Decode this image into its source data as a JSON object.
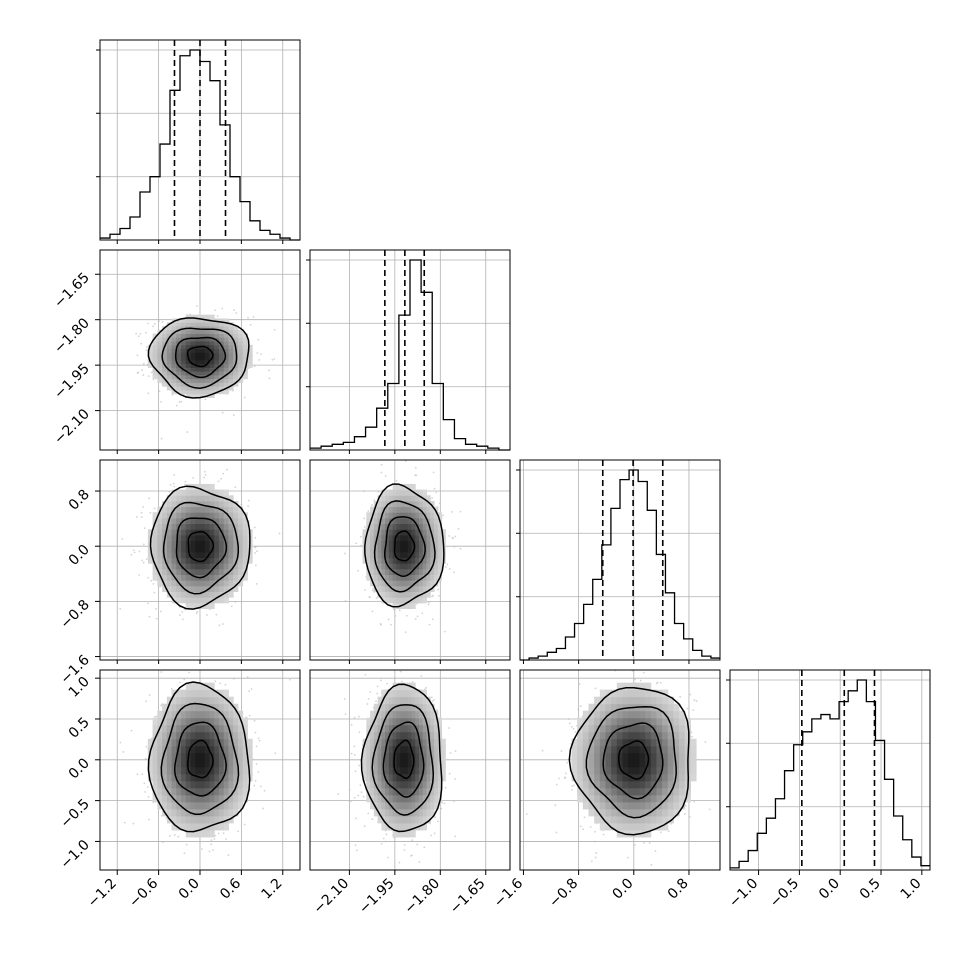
{
  "chart_data": {
    "type": "corner",
    "grid": true,
    "colors": {
      "ink": "#000000",
      "grid": "#b0b0b0",
      "scatter": "#b8b8b8"
    },
    "variables": [
      {
        "range": [
          -1.45,
          1.45
        ],
        "ticks": [
          -1.2,
          -0.6,
          0.0,
          0.6,
          1.2
        ],
        "tick_labels": [
          "−1.2",
          "−0.6",
          "0.0",
          "0.6",
          "1.2"
        ],
        "quantiles": [
          -0.37,
          0.0,
          0.37
        ],
        "hist": [
          1,
          3,
          6,
          12,
          25,
          33,
          50,
          78,
          96,
          99,
          93,
          83,
          60,
          33,
          20,
          10,
          5,
          3,
          1,
          0
        ]
      },
      {
        "range": [
          -2.23,
          -1.57
        ],
        "ticks": [
          -2.1,
          -1.95,
          -1.8,
          -1.65
        ],
        "tick_labels": [
          "−2.10",
          "−1.95",
          "−1.80",
          "−1.65"
        ],
        "quantiles": [
          -1.983,
          -1.917,
          -1.853
        ],
        "hist": [
          1,
          2,
          3,
          4,
          7,
          12,
          22,
          35,
          71,
          100,
          83,
          35,
          16,
          6,
          3,
          2,
          1,
          0
        ]
      },
      {
        "range": [
          -1.65,
          1.25
        ],
        "ticks": [
          -1.6,
          -0.8,
          0.0,
          0.8
        ],
        "tick_labels": [
          "−1.6",
          "−0.8",
          "0.0",
          "0.8"
        ],
        "quantiles": [
          -0.45,
          -0.01,
          0.42
        ],
        "hist": [
          0,
          1,
          2,
          4,
          6,
          12,
          19,
          29,
          42,
          60,
          79,
          94,
          99,
          93,
          78,
          55,
          35,
          19,
          11,
          5,
          2,
          1
        ]
      },
      {
        "range": [
          -1.35,
          1.1
        ],
        "ticks": [
          -1.0,
          -0.5,
          0.0,
          0.5,
          1.0
        ],
        "tick_labels": [
          "−1.0",
          "−0.5",
          "0.0",
          "0.5",
          "1.0"
        ],
        "quantiles": [
          -0.47,
          0.05,
          0.42
        ],
        "hist": [
          1,
          4,
          9,
          17,
          24,
          33,
          46,
          58,
          64,
          70,
          72,
          70,
          78,
          83,
          88,
          78,
          60,
          42,
          25,
          14,
          6,
          2
        ]
      }
    ],
    "pairs": [
      {
        "row": 1,
        "col": 0,
        "mean_x": 0.0,
        "mean_y": -1.92,
        "sd_x": 0.36,
        "sd_y": 0.065,
        "corr": 0.0
      },
      {
        "row": 2,
        "col": 0,
        "mean_x": 0.0,
        "mean_y": 0.0,
        "sd_x": 0.36,
        "sd_y": 0.43,
        "corr": 0.0
      },
      {
        "row": 2,
        "col": 1,
        "mean_x": -1.92,
        "mean_y": 0.0,
        "sd_x": 0.065,
        "sd_y": 0.43,
        "corr": 0.0
      },
      {
        "row": 3,
        "col": 0,
        "mean_x": 0.0,
        "mean_y": 0.0,
        "sd_x": 0.36,
        "sd_y": 0.45,
        "corr": 0.0
      },
      {
        "row": 3,
        "col": 1,
        "mean_x": -1.92,
        "mean_y": 0.0,
        "sd_x": 0.065,
        "sd_y": 0.45,
        "corr": 0.0
      },
      {
        "row": 3,
        "col": 2,
        "mean_x": 0.0,
        "mean_y": 0.0,
        "sd_x": 0.43,
        "sd_y": 0.45,
        "corr": 0.0
      }
    ]
  }
}
